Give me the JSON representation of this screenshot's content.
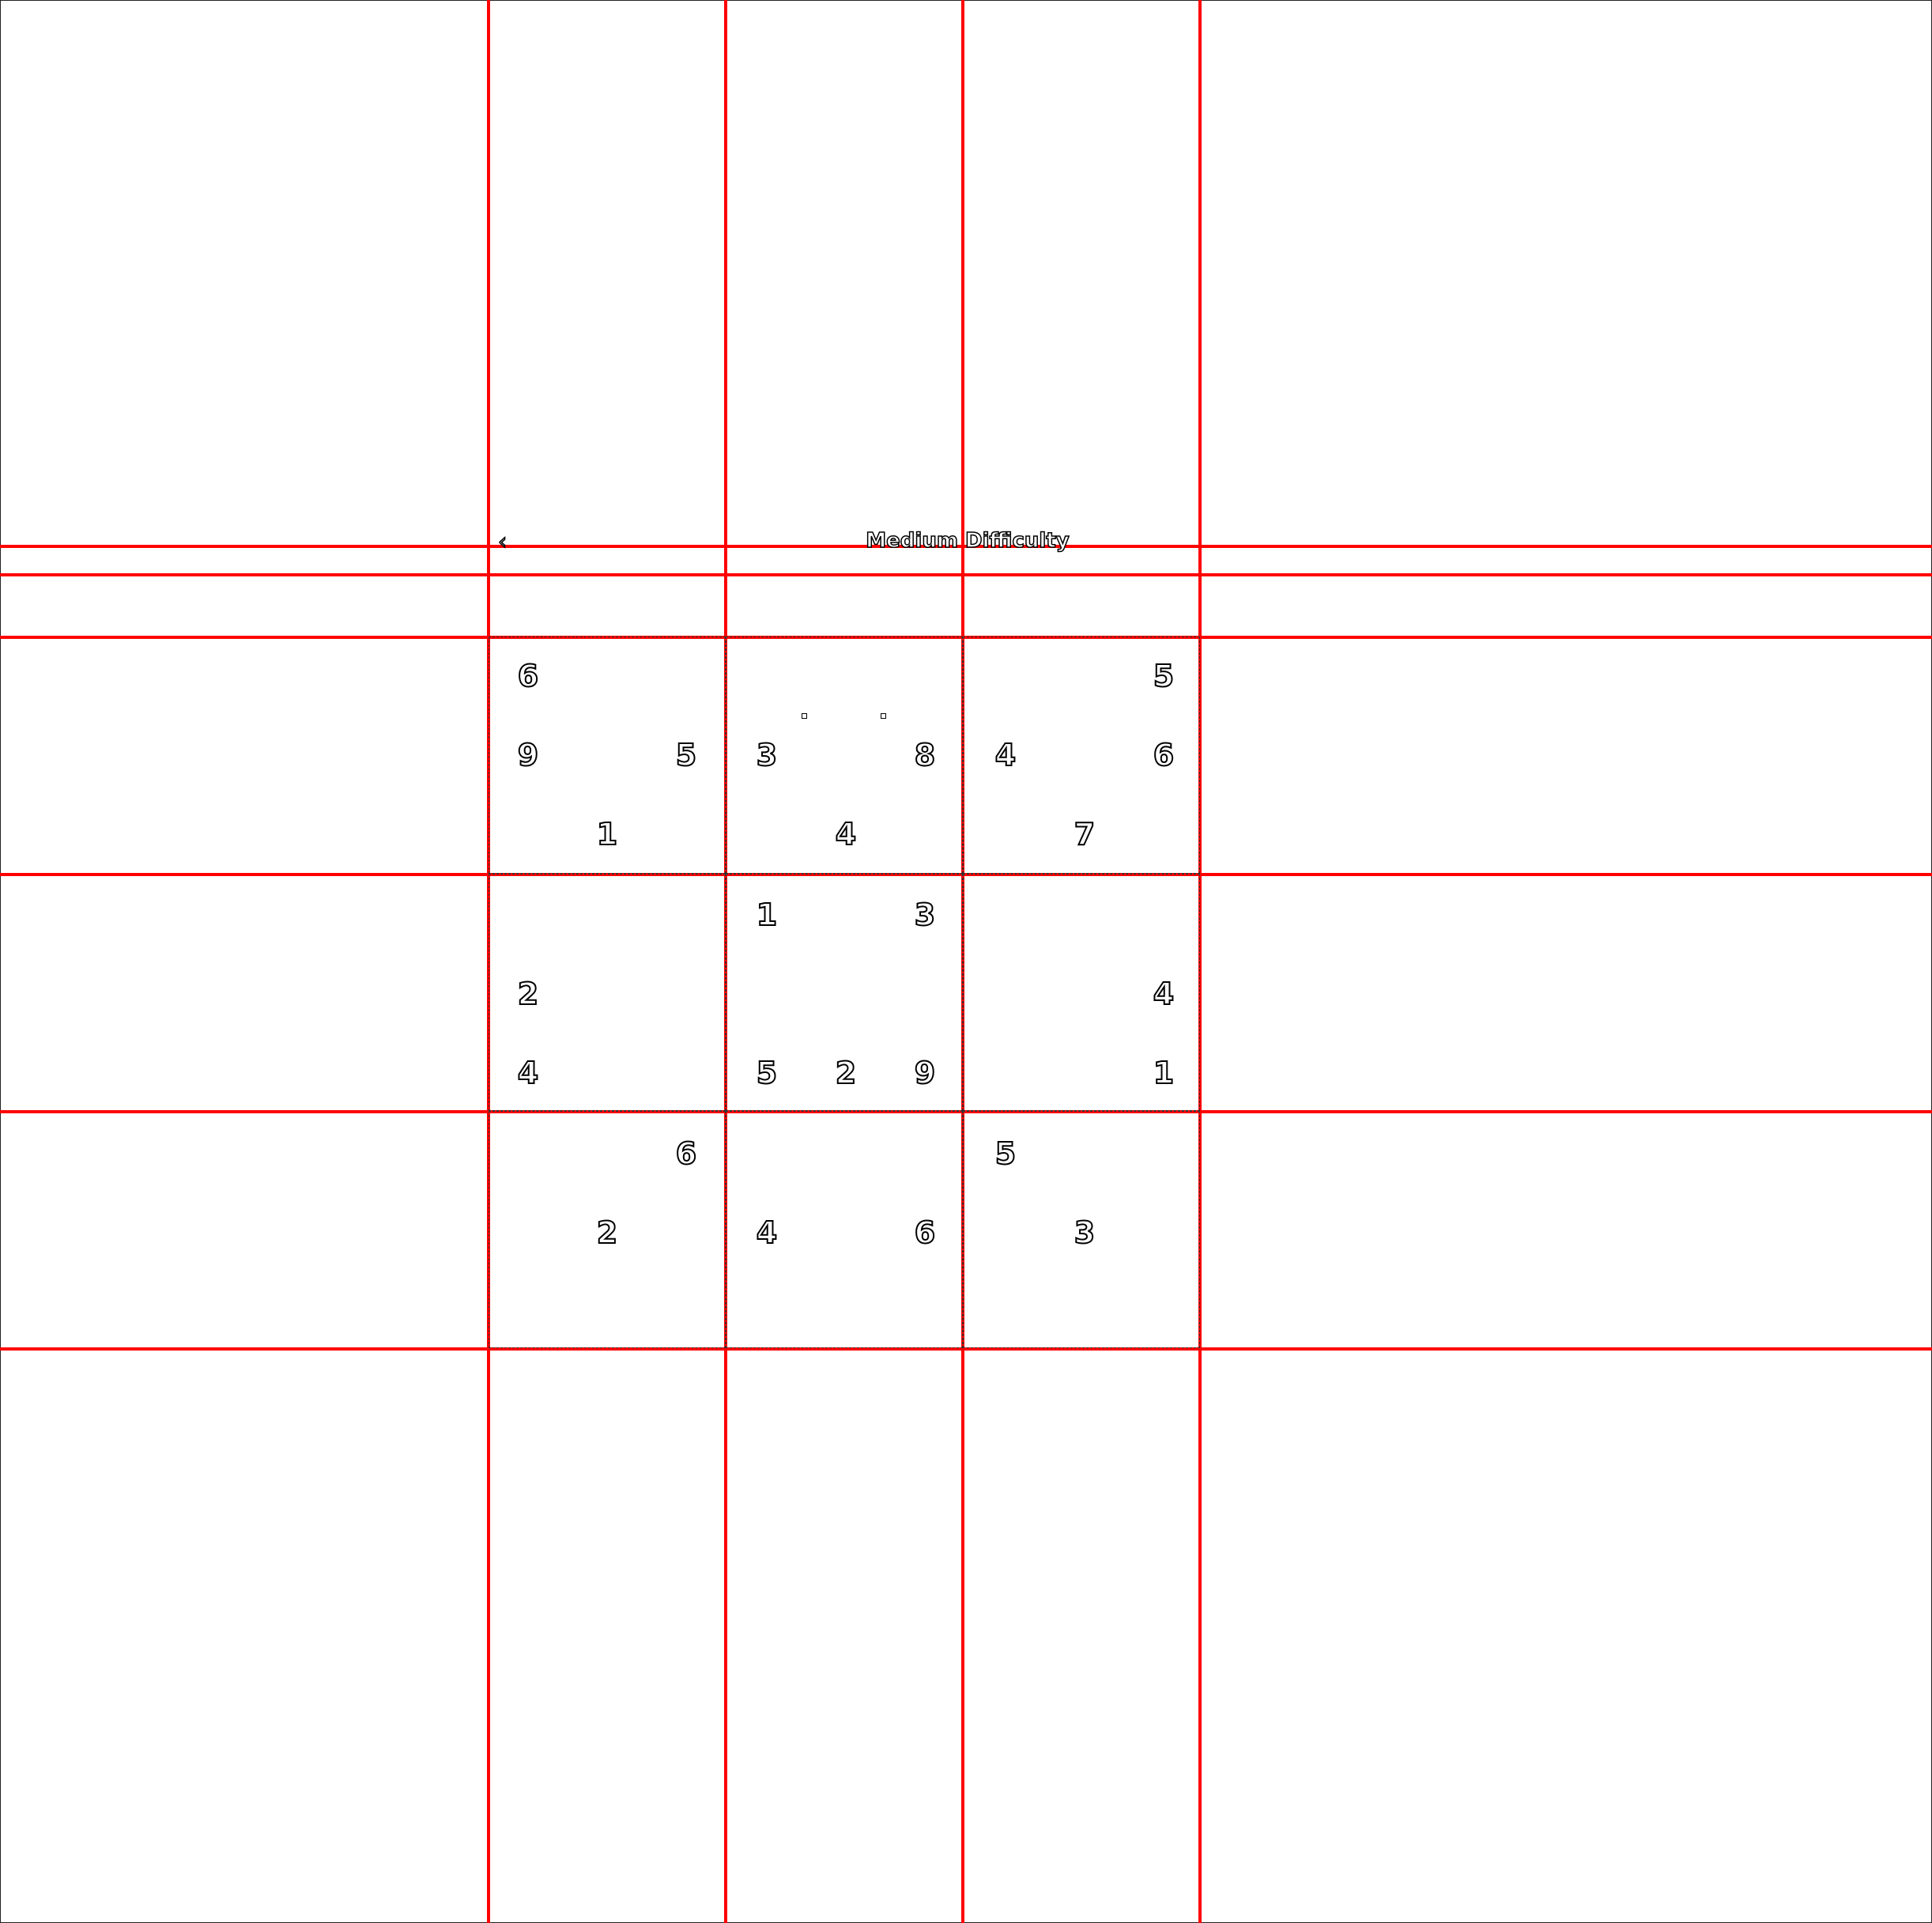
{
  "header": {
    "title": "Medium Difficulty",
    "back_icon": "back-arrow-icon"
  },
  "grid": [
    [
      "6",
      "",
      "",
      "",
      "",
      "",
      "",
      "",
      "5"
    ],
    [
      "9",
      "",
      "5",
      "3",
      "",
      "8",
      "4",
      "",
      "6"
    ],
    [
      "",
      "1",
      "",
      "",
      "4",
      "",
      "",
      "7",
      ""
    ],
    [
      "",
      "",
      "",
      "1",
      "",
      "3",
      "",
      "",
      ""
    ],
    [
      "2",
      "",
      "",
      "",
      "",
      "",
      "",
      "",
      "4"
    ],
    [
      "4",
      "",
      "",
      "5",
      "2",
      "9",
      "",
      "",
      "1"
    ],
    [
      "",
      "",
      "6",
      "",
      "",
      "",
      "5",
      "",
      ""
    ],
    [
      "",
      "2",
      "",
      "4",
      "",
      "6",
      "",
      "3",
      ""
    ],
    [
      "",
      "",
      "",
      "",
      "",
      "",
      "",
      "",
      ""
    ]
  ]
}
